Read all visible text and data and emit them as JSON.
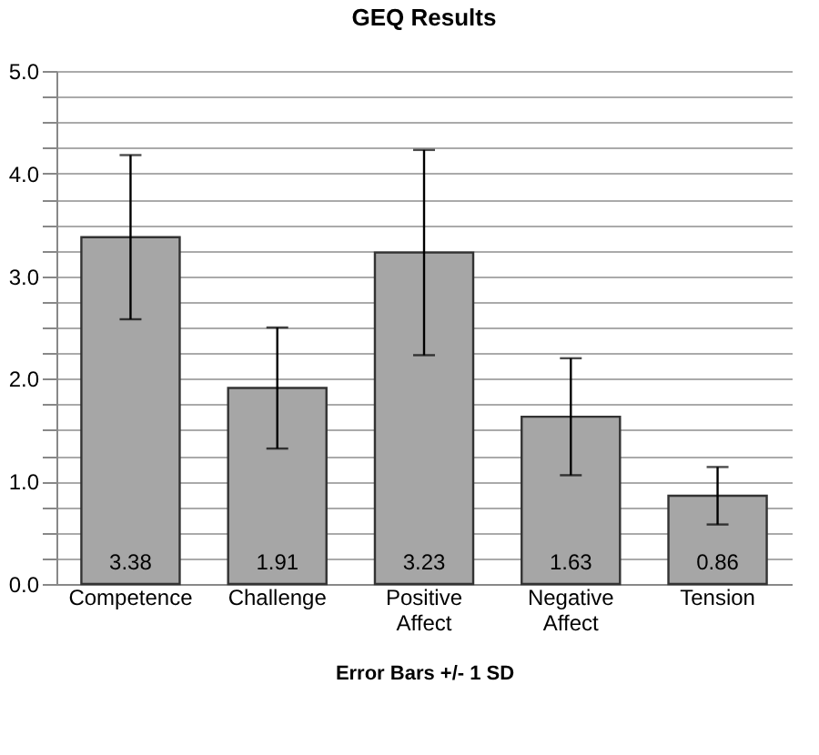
{
  "chart_data": {
    "type": "bar",
    "title": "GEQ Results",
    "xlabel": "Error Bars +/- 1 SD",
    "categories": [
      "Competence",
      "Challenge",
      "Positive Affect",
      "Negative Affect",
      "Tension"
    ],
    "values": [
      3.38,
      1.91,
      3.23,
      1.63,
      0.86
    ],
    "color": "#a6a6a6",
    "errors": [
      0.8,
      0.59,
      1.0,
      0.57,
      0.28
    ],
    "data_labels": true,
    "grid": true,
    "ylim": [
      0,
      5
    ],
    "yticks": [
      {
        "value": 0,
        "label": "0.0"
      },
      {
        "value": 0.25,
        "label": null
      },
      {
        "value": 0.5,
        "label": null
      },
      {
        "value": 0.75,
        "label": null
      },
      {
        "value": 1,
        "label": "1.0"
      },
      {
        "value": 1.25,
        "label": null
      },
      {
        "value": 1.5,
        "label": null
      },
      {
        "value": 1.75,
        "label": null
      },
      {
        "value": 2,
        "label": "2.0"
      },
      {
        "value": 2.25,
        "label": null
      },
      {
        "value": 2.5,
        "label": null
      },
      {
        "value": 2.75,
        "label": null
      },
      {
        "value": 3,
        "label": "3.0"
      },
      {
        "value": 3.25,
        "label": null
      },
      {
        "value": 3.5,
        "label": null
      },
      {
        "value": 3.75,
        "label": null
      },
      {
        "value": 4,
        "label": "4.0"
      },
      {
        "value": 4.25,
        "label": null
      },
      {
        "value": 4.5,
        "label": null
      },
      {
        "value": 4.75,
        "label": null
      },
      {
        "value": 5,
        "label": "5.0"
      }
    ]
  }
}
